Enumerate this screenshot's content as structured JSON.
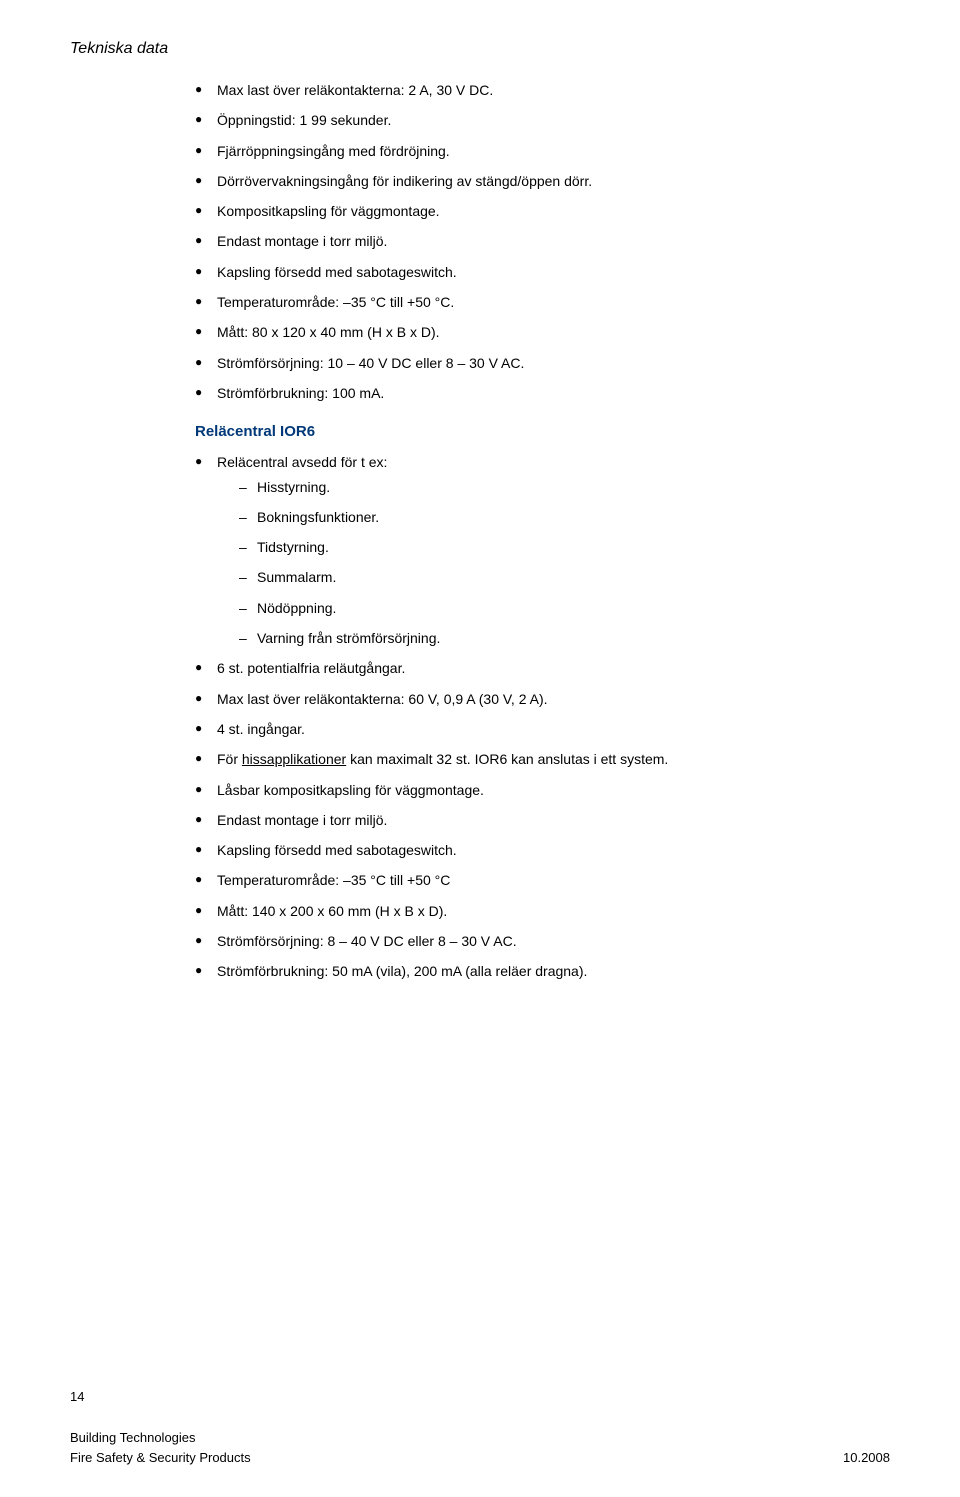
{
  "header": {
    "title": "Tekniska data"
  },
  "section1": {
    "items": [
      "Max last över reläkontakterna: 2 A, 30 V DC.",
      "Öppningstid: 1 99 sekunder.",
      "Fjärröppningsingång med fördröjning.",
      "Dörrövervakningsingång för indikering av stängd/öppen dörr.",
      "Kompositkapsling för väggmontage.",
      "Endast montage i torr miljö.",
      "Kapsling försedd med sabotageswitch.",
      "Temperaturområde: –35 °C till +50 °C.",
      "Mått: 80 x 120 x 40 mm (H x B x D).",
      "Strömförsörjning: 10 – 40 V DC eller 8 – 30 V AC.",
      "Strömförbrukning: 100 mA."
    ]
  },
  "section2": {
    "heading": "Reläcentral IOR6",
    "item1_label": "Reläcentral avsedd för t ex:",
    "sublist": [
      "Hisstyrning.",
      "Bokningsfunktioner.",
      "Tidstyrning.",
      "Summalarm.",
      "Nödöppning.",
      "Varning från strömförsörjning."
    ],
    "items2": [
      "6 st. potentialfria reläutgångar.",
      "Max last över reläkontakterna: 60 V, 0,9 A (30 V, 2 A).",
      "4 st. ingångar."
    ],
    "item_hiss_pre": "För ",
    "item_hiss_underlined": "hissapplikationer",
    "item_hiss_post": " kan maximalt 32 st. IOR6 kan anslutas i ett system.",
    "items3": [
      "Låsbar kompositkapsling för väggmontage.",
      "Endast montage i torr miljö.",
      "Kapsling försedd med sabotageswitch.",
      "Temperaturområde: –35 °C till +50 °C",
      "Mått: 140 x 200 x 60 mm (H x B x D).",
      "Strömförsörjning: 8 – 40 V DC eller 8 – 30 V AC.",
      "Strömförbrukning: 50 mA (vila), 200 mA (alla reläer dragna)."
    ]
  },
  "footer": {
    "page_number": "14",
    "line1_left": "Building Technologies",
    "line2_left": "Fire Safety & Security Products",
    "line2_right": "10.2008"
  }
}
